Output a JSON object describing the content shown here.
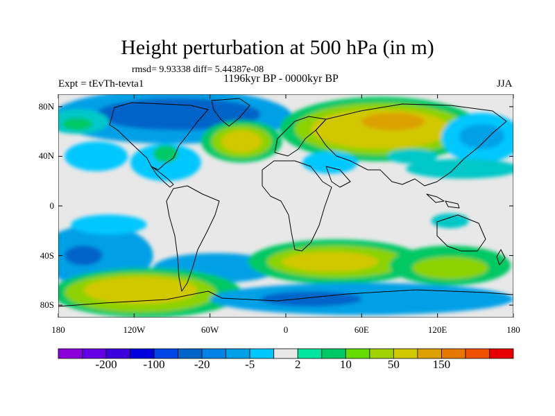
{
  "title": "Height perturbation at 500 hPa (in m)",
  "stats": "rmsd= 9.93338 diff= 5.44387e-08",
  "period": "1196kyr BP - 0000kyr BP",
  "experiment": "Expt = tEvTh-tevta1",
  "season": "JJA",
  "map": {
    "lon_range": [
      -180,
      180
    ],
    "lat_range": [
      -90,
      90
    ],
    "y_ticks": [
      {
        "lat": 80,
        "label": "80N"
      },
      {
        "lat": 40,
        "label": "40N"
      },
      {
        "lat": 0,
        "label": "0"
      },
      {
        "lat": -40,
        "label": "40S"
      },
      {
        "lat": -80,
        "label": "80S"
      }
    ],
    "x_ticks": [
      {
        "lon": -180,
        "label": "180"
      },
      {
        "lon": -120,
        "label": "120W"
      },
      {
        "lon": -60,
        "label": "60W"
      },
      {
        "lon": 0,
        "label": "0"
      },
      {
        "lon": 60,
        "label": "60E"
      },
      {
        "lon": 120,
        "label": "120E"
      },
      {
        "lon": 180,
        "label": "180"
      }
    ],
    "background_color": "#e8e8e8",
    "blobs": [
      {
        "lon": -90,
        "lat": 72,
        "rx": 95,
        "ry": 22,
        "color": "#00a0e6"
      },
      {
        "lon": -85,
        "lat": 74,
        "rx": 65,
        "ry": 13,
        "color": "#0064c8"
      },
      {
        "lon": -165,
        "lat": 68,
        "rx": 25,
        "ry": 10,
        "color": "#00c8c8"
      },
      {
        "lon": -165,
        "lat": 66,
        "rx": 12,
        "ry": 5,
        "color": "#00c864"
      },
      {
        "lon": -150,
        "lat": 40,
        "rx": 25,
        "ry": 12,
        "color": "#00c8ff"
      },
      {
        "lon": -95,
        "lat": 35,
        "rx": 28,
        "ry": 15,
        "color": "#00c8ff"
      },
      {
        "lon": -95,
        "lat": 42,
        "rx": 10,
        "ry": 7,
        "color": "#00c864"
      },
      {
        "lon": -35,
        "lat": 52,
        "rx": 32,
        "ry": 17,
        "color": "#00c864"
      },
      {
        "lon": -35,
        "lat": 52,
        "rx": 24,
        "ry": 13,
        "color": "#8cd200"
      },
      {
        "lon": -35,
        "lat": 52,
        "rx": 16,
        "ry": 9,
        "color": "#d2c800"
      },
      {
        "lon": 75,
        "lat": 62,
        "rx": 80,
        "ry": 26,
        "color": "#00c864"
      },
      {
        "lon": 75,
        "lat": 62,
        "rx": 68,
        "ry": 21,
        "color": "#8cd200"
      },
      {
        "lon": 75,
        "lat": 62,
        "rx": 55,
        "ry": 16,
        "color": "#d2c800"
      },
      {
        "lon": 85,
        "lat": 68,
        "rx": 25,
        "ry": 7,
        "color": "#dca000"
      },
      {
        "lon": 35,
        "lat": 35,
        "rx": 22,
        "ry": 9,
        "color": "#00c8ff"
      },
      {
        "lon": 155,
        "lat": 55,
        "rx": 32,
        "ry": 20,
        "color": "#00c8ff"
      },
      {
        "lon": 155,
        "lat": 56,
        "rx": 18,
        "ry": 10,
        "color": "#00a0e6"
      },
      {
        "lon": 140,
        "lat": 30,
        "rx": 45,
        "ry": 8,
        "color": "#00c8c8"
      },
      {
        "lon": 100,
        "lat": 40,
        "rx": 20,
        "ry": 6,
        "color": "#00c8c8"
      },
      {
        "lon": -150,
        "lat": -40,
        "rx": 45,
        "ry": 25,
        "color": "#00a0e6"
      },
      {
        "lon": -160,
        "lat": -40,
        "rx": 15,
        "ry": 8,
        "color": "#0064c8"
      },
      {
        "lon": -55,
        "lat": -50,
        "rx": 50,
        "ry": 12,
        "color": "#00a0e6"
      },
      {
        "lon": -110,
        "lat": -70,
        "rx": 75,
        "ry": 20,
        "color": "#00c864"
      },
      {
        "lon": -115,
        "lat": -70,
        "rx": 60,
        "ry": 16,
        "color": "#8cd200"
      },
      {
        "lon": -115,
        "lat": -68,
        "rx": 45,
        "ry": 11,
        "color": "#d2c800"
      },
      {
        "lon": 40,
        "lat": -45,
        "rx": 70,
        "ry": 18,
        "color": "#00c864"
      },
      {
        "lon": 40,
        "lat": -45,
        "rx": 55,
        "ry": 13,
        "color": "#8cd200"
      },
      {
        "lon": 35,
        "lat": -45,
        "rx": 38,
        "ry": 8,
        "color": "#d2c800"
      },
      {
        "lon": 130,
        "lat": -48,
        "rx": 48,
        "ry": 16,
        "color": "#00c864"
      },
      {
        "lon": 130,
        "lat": -50,
        "rx": 30,
        "ry": 9,
        "color": "#8cd200"
      },
      {
        "lon": 60,
        "lat": -75,
        "rx": 120,
        "ry": 13,
        "color": "#00a0e6"
      },
      {
        "lon": 20,
        "lat": -75,
        "rx": 40,
        "ry": 6,
        "color": "#0064c8"
      },
      {
        "lon": -140,
        "lat": -15,
        "rx": 30,
        "ry": 8,
        "color": "#00c8ff"
      },
      {
        "lon": 130,
        "lat": -12,
        "rx": 15,
        "ry": 6,
        "color": "#00c8c8"
      }
    ]
  },
  "colorbar": {
    "colors": [
      "#8c00dc",
      "#6400e6",
      "#3c00dc",
      "#0000dc",
      "#0046e6",
      "#0064c8",
      "#0082e6",
      "#00a0e6",
      "#00c8ff",
      "#e8e8e8",
      "#00e6a0",
      "#00c864",
      "#64dc00",
      "#a0d200",
      "#d2c800",
      "#dca000",
      "#e67800",
      "#f05000",
      "#e60000"
    ],
    "labels": [
      "-200",
      "-100",
      "-20",
      "-5",
      "2",
      "10",
      "50",
      "150"
    ]
  }
}
